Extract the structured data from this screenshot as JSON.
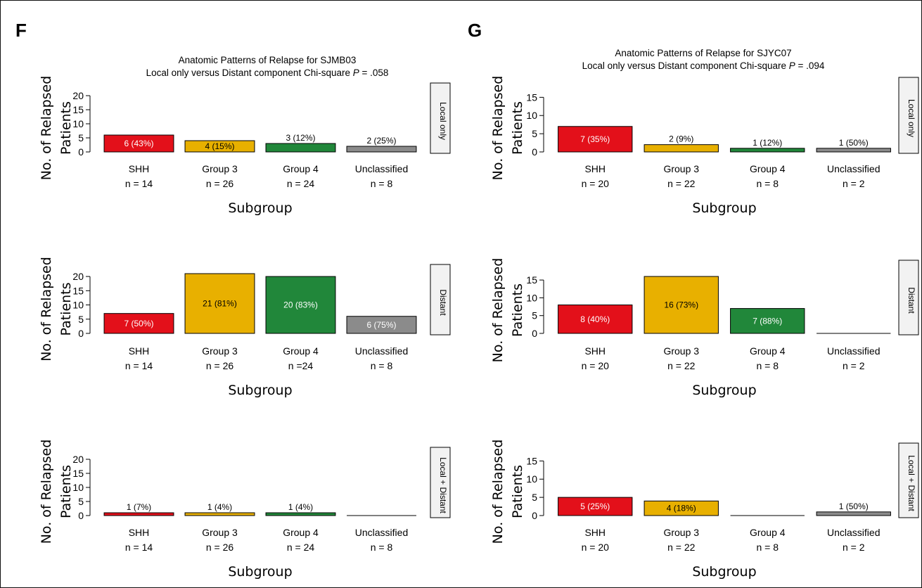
{
  "colors": {
    "SHH": "#e3101a",
    "Group 3": "#e8b000",
    "Group 4": "#21873a",
    "Unclassified": "#8b8b8b"
  },
  "chart_data": [
    {
      "panel": "F",
      "title_line1": "Anatomic Patterns of Relapse for SJMB03",
      "title_line2_prefix": "Local only versus Distant component Chi-square",
      "title_p_symbol": "P",
      "title_p_value": "= .058",
      "ylabel_line1": "No. of Relapsed",
      "ylabel_line2": "Patients",
      "xlabel": "Subgroup",
      "ylim": [
        0,
        22
      ],
      "yticks": [
        0,
        5,
        10,
        15,
        20
      ],
      "charts": [
        {
          "type": "bar",
          "facet": "Local only",
          "categories": [
            "SHH",
            "Group 3",
            "Group 4",
            "Unclassified"
          ],
          "n_labels": [
            "n = 14",
            "n = 26",
            "n = 24",
            "n = 8"
          ],
          "values": [
            6,
            4,
            3,
            2
          ],
          "labels": [
            "6 (43%)",
            "4 (15%)",
            "3 (12%)",
            "2 (25%)"
          ]
        },
        {
          "type": "bar",
          "facet": "Distant",
          "categories": [
            "SHH",
            "Group 3",
            "Group 4",
            "Unclassified"
          ],
          "n_labels": [
            "n = 14",
            "n = 26",
            "n =24",
            "n = 8"
          ],
          "values": [
            7,
            21,
            20,
            6
          ],
          "labels": [
            "7 (50%)",
            "21 (81%)",
            "20 (83%)",
            "6 (75%)"
          ]
        },
        {
          "type": "bar",
          "facet": "Local + Distant",
          "categories": [
            "SHH",
            "Group 3",
            "Group 4",
            "Unclassified"
          ],
          "n_labels": [
            "n = 14",
            "n = 26",
            "n = 24",
            "n = 8"
          ],
          "values": [
            1,
            1,
            1,
            0
          ],
          "labels": [
            "1 (7%)",
            "1 (4%)",
            "1 (4%)",
            ""
          ]
        }
      ]
    },
    {
      "panel": "G",
      "title_line1": "Anatomic Patterns of Relapse for SJYC07",
      "title_line2_prefix": "Local only versus Distant component Chi-square",
      "title_p_symbol": "P",
      "title_p_value": "= .094",
      "ylabel_line1": "No. of Relapsed",
      "ylabel_line2": "Patients",
      "xlabel": "Subgroup",
      "ylim": [
        0,
        17
      ],
      "yticks": [
        0,
        5,
        10,
        15
      ],
      "charts": [
        {
          "type": "bar",
          "facet": "Local only",
          "categories": [
            "SHH",
            "Group 3",
            "Group 4",
            "Unclassified"
          ],
          "n_labels": [
            "n = 20",
            "n = 22",
            "n = 8",
            "n = 2"
          ],
          "values": [
            7,
            2,
            1,
            1
          ],
          "labels": [
            "7 (35%)",
            "2 (9%)",
            "1 (12%)",
            "1 (50%)"
          ]
        },
        {
          "type": "bar",
          "facet": "Distant",
          "categories": [
            "SHH",
            "Group 3",
            "Group 4",
            "Unclassified"
          ],
          "n_labels": [
            "n = 20",
            "n = 22",
            "n = 8",
            "n = 2"
          ],
          "values": [
            8,
            16,
            7,
            0
          ],
          "labels": [
            "8 (40%)",
            "16 (73%)",
            "7 (88%)",
            ""
          ]
        },
        {
          "type": "bar",
          "facet": "Local + Distant",
          "categories": [
            "SHH",
            "Group 3",
            "Group 4",
            "Unclassified"
          ],
          "n_labels": [
            "n = 20",
            "n = 22",
            "n = 8",
            "n = 2"
          ],
          "values": [
            5,
            4,
            0,
            1
          ],
          "labels": [
            "5 (25%)",
            "4 (18%)",
            "",
            "1 (50%)"
          ]
        }
      ]
    }
  ]
}
